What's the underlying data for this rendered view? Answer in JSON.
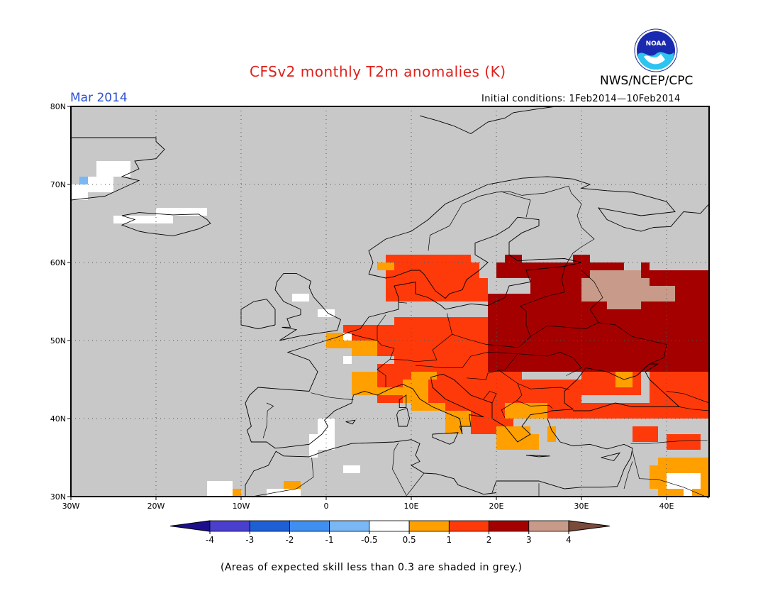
{
  "title": "CFSv2 monthly T2m anomalies (K)",
  "month": "Mar 2014",
  "initial_conditions": "Initial conditions: 1Feb2014—10Feb2014",
  "organization": "NWS/NCEP/CPC",
  "logo_text": "NOAA",
  "footnote": "(Areas of expected skill less than 0.3 are shaded in grey.)",
  "map": {
    "lon_range": [
      -30,
      45
    ],
    "lat_range": [
      30,
      80
    ],
    "lat_labels": [
      "80N",
      "70N",
      "60N",
      "50N",
      "40N",
      "30N"
    ],
    "lon_labels": [
      "30W",
      "20W",
      "10W",
      "0",
      "10E",
      "20E",
      "30E",
      "40E"
    ],
    "background_color": "#c8c8c8",
    "grid": "dotted"
  },
  "colorbar": {
    "labels": [
      "-4",
      "-3",
      "-2",
      "-1",
      "-0.5",
      "0.5",
      "1",
      "2",
      "3",
      "4"
    ],
    "colors": [
      "#1c0f8c",
      "#4a3fcf",
      "#1f5fd6",
      "#3f8ff0",
      "#7ab8f5",
      "#ffffff",
      "#ffa000",
      "#ff3a0a",
      "#a50000",
      "#c89a8a",
      "#7a4a3a"
    ]
  }
}
